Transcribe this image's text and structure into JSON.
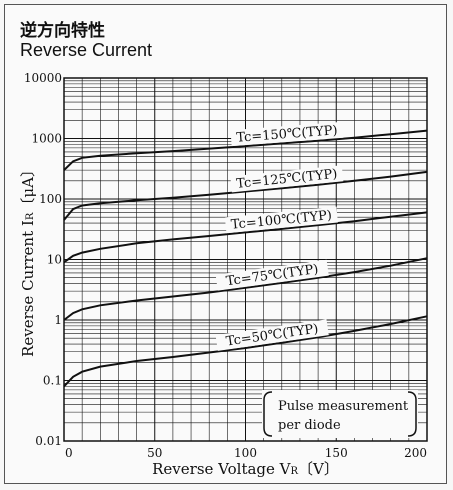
{
  "chart_data": {
    "type": "line",
    "title": "逆方向特性",
    "subtitle": "Reverse  Current",
    "xlabel": "Reverse Voltage V",
    "xlabel_sub": "R",
    "xlabel_unit": "〔V〕",
    "ylabel": "Reverse Current I",
    "ylabel_sub": "R",
    "ylabel_unit": "〔μA〕",
    "xlim": [
      0,
      200
    ],
    "ylim": [
      0.01,
      10000
    ],
    "yscale": "log",
    "grid": true,
    "xticks": [
      "0",
      "50",
      "100",
      "150",
      "200"
    ],
    "yticks": [
      "0.01",
      "0.1",
      "1",
      "10",
      "100",
      "1000",
      "10000"
    ],
    "note_lines": [
      "Pulse measurement",
      "per diode"
    ],
    "series": [
      {
        "name": "Tc=150℃(TYP)",
        "x": [
          0,
          5,
          10,
          20,
          40,
          60,
          80,
          100,
          120,
          140,
          160,
          180,
          200
        ],
        "y": [
          300,
          420,
          480,
          520,
          570,
          620,
          680,
          750,
          830,
          920,
          1030,
          1180,
          1350
        ],
        "label_x": 123
      },
      {
        "name": "Tc=125℃(TYP)",
        "x": [
          0,
          5,
          10,
          20,
          40,
          60,
          80,
          100,
          120,
          140,
          160,
          180,
          200
        ],
        "y": [
          45,
          68,
          78,
          85,
          95,
          105,
          118,
          133,
          150,
          172,
          200,
          235,
          280
        ],
        "label_x": 123
      },
      {
        "name": "Tc=100℃(TYP)",
        "x": [
          0,
          5,
          10,
          20,
          40,
          60,
          80,
          100,
          120,
          140,
          160,
          180,
          200
        ],
        "y": [
          9,
          11.5,
          13,
          15,
          18.5,
          21.5,
          24.5,
          28,
          32,
          37,
          43,
          51,
          60
        ],
        "label_x": 120
      },
      {
        "name": "Tc=75℃(TYP)",
        "x": [
          0,
          5,
          10,
          20,
          40,
          60,
          80,
          100,
          120,
          140,
          160,
          180,
          200
        ],
        "y": [
          1,
          1.3,
          1.5,
          1.75,
          2.1,
          2.45,
          2.85,
          3.4,
          4.1,
          5.0,
          6.2,
          7.9,
          10.5
        ],
        "label_x": 115
      },
      {
        "name": "Tc=50℃(TYP)",
        "x": [
          0,
          5,
          10,
          20,
          40,
          60,
          80,
          100,
          120,
          140,
          160,
          180,
          200
        ],
        "y": [
          0.08,
          0.115,
          0.14,
          0.17,
          0.21,
          0.245,
          0.29,
          0.345,
          0.42,
          0.52,
          0.66,
          0.86,
          1.15
        ],
        "label_x": 115
      }
    ]
  }
}
